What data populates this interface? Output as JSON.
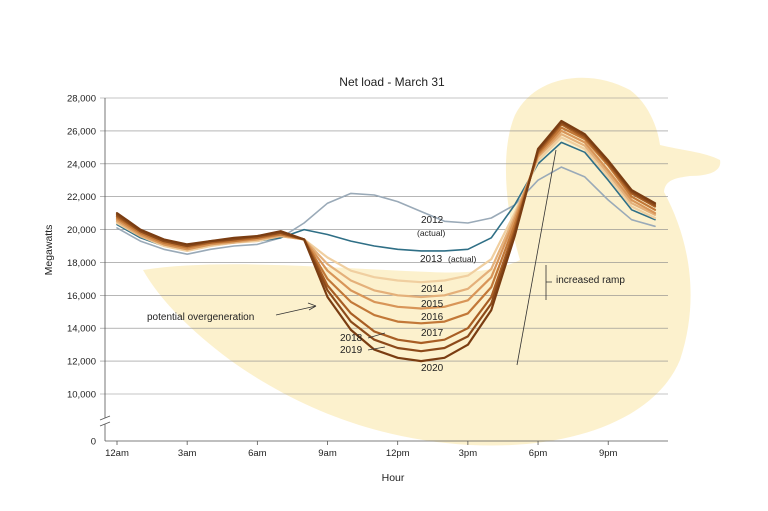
{
  "chart_data": {
    "type": "line",
    "title": "Net load - March 31",
    "xlabel": "Hour",
    "ylabel": "Megawatts",
    "ylim": [
      10000,
      28000
    ],
    "y_ticks": [
      0,
      10000,
      12000,
      14000,
      16000,
      18000,
      20000,
      22000,
      24000,
      26000,
      28000
    ],
    "y_tick_labels": [
      "0",
      "10,000",
      "12,000",
      "14,000",
      "16,000",
      "18,000",
      "20,000",
      "22,000",
      "24,000",
      "26,000",
      "28,000"
    ],
    "y_axis_break": true,
    "x": [
      0,
      1,
      2,
      3,
      4,
      5,
      6,
      7,
      8,
      9,
      10,
      11,
      12,
      13,
      14,
      15,
      16,
      17,
      18,
      19,
      20,
      21,
      22,
      23
    ],
    "x_ticks": [
      0,
      3,
      6,
      9,
      12,
      15,
      18,
      21
    ],
    "x_tick_labels": [
      "12am",
      "3am",
      "6am",
      "9am",
      "12pm",
      "3pm",
      "6pm",
      "9pm"
    ],
    "grid": true,
    "series": [
      {
        "name": "2012",
        "color": "#9aaab8",
        "values": [
          20100,
          19300,
          18800,
          18500,
          18800,
          19000,
          19100,
          19500,
          20400,
          21600,
          22200,
          22100,
          21700,
          21100,
          20500,
          20400,
          20700,
          21500,
          23000,
          23800,
          23200,
          21800,
          20600,
          20200
        ]
      },
      {
        "name": "2013",
        "color": "#2f6f86",
        "values": [
          20300,
          19500,
          19000,
          18700,
          19000,
          19200,
          19300,
          19500,
          20000,
          19700,
          19300,
          19000,
          18800,
          18700,
          18700,
          18800,
          19500,
          21500,
          24000,
          25300,
          24700,
          23000,
          21200,
          20600
        ]
      },
      {
        "name": "2014",
        "color": "#f0cfa0",
        "values": [
          20400,
          19600,
          19000,
          18700,
          19000,
          19200,
          19300,
          19600,
          19400,
          18300,
          17500,
          17100,
          16900,
          16800,
          16900,
          17200,
          18200,
          21000,
          24200,
          25600,
          24900,
          23200,
          21400,
          20700
        ]
      },
      {
        "name": "2015",
        "color": "#e4b07a",
        "values": [
          20500,
          19600,
          19100,
          18800,
          19100,
          19200,
          19400,
          19600,
          19400,
          17900,
          16900,
          16300,
          16000,
          15900,
          16000,
          16400,
          17600,
          20800,
          24400,
          25800,
          25100,
          23400,
          21600,
          20900
        ]
      },
      {
        "name": "2016",
        "color": "#d89558",
        "values": [
          20600,
          19700,
          19100,
          18800,
          19100,
          19300,
          19400,
          19700,
          19400,
          17500,
          16300,
          15600,
          15300,
          15200,
          15300,
          15700,
          17100,
          20600,
          24500,
          26000,
          25300,
          23600,
          21800,
          21000
        ]
      },
      {
        "name": "2017",
        "color": "#c27838",
        "values": [
          20700,
          19800,
          19200,
          18900,
          19200,
          19300,
          19500,
          19700,
          19400,
          17000,
          15600,
          14800,
          14400,
          14300,
          14400,
          14900,
          16500,
          20300,
          24600,
          26200,
          25500,
          23900,
          22000,
          21200
        ]
      },
      {
        "name": "2018",
        "color": "#a85e24",
        "values": [
          20800,
          19900,
          19300,
          19000,
          19200,
          19400,
          19500,
          19800,
          19400,
          16600,
          14900,
          13800,
          13300,
          13100,
          13300,
          14000,
          15900,
          20000,
          24700,
          26400,
          25600,
          24000,
          22200,
          21400
        ]
      },
      {
        "name": "2019",
        "color": "#8c4a1a",
        "values": [
          20900,
          19900,
          19300,
          19000,
          19300,
          19400,
          19600,
          19800,
          19400,
          16300,
          14400,
          13300,
          12800,
          12600,
          12800,
          13500,
          15500,
          19800,
          24800,
          26500,
          25700,
          24100,
          22300,
          21500
        ]
      },
      {
        "name": "2020",
        "color": "#7a3d12",
        "values": [
          21000,
          20000,
          19400,
          19100,
          19300,
          19500,
          19600,
          19900,
          19400,
          15900,
          13900,
          12700,
          12200,
          12000,
          12200,
          13000,
          15100,
          19600,
          24900,
          26600,
          25800,
          24200,
          22400,
          21600
        ]
      }
    ],
    "annotations": {
      "label_2012": "2012",
      "label_2012_actual": "(actual)",
      "label_2013": "2013",
      "label_2013_actual": "(actual)",
      "label_2014": "2014",
      "label_2015": "2015",
      "label_2016": "2016",
      "label_2017": "2017",
      "label_2018": "2018",
      "label_2019": "2019",
      "label_2020": "2020",
      "overgeneration": "potential overgeneration",
      "ramp": "increased ramp"
    }
  }
}
